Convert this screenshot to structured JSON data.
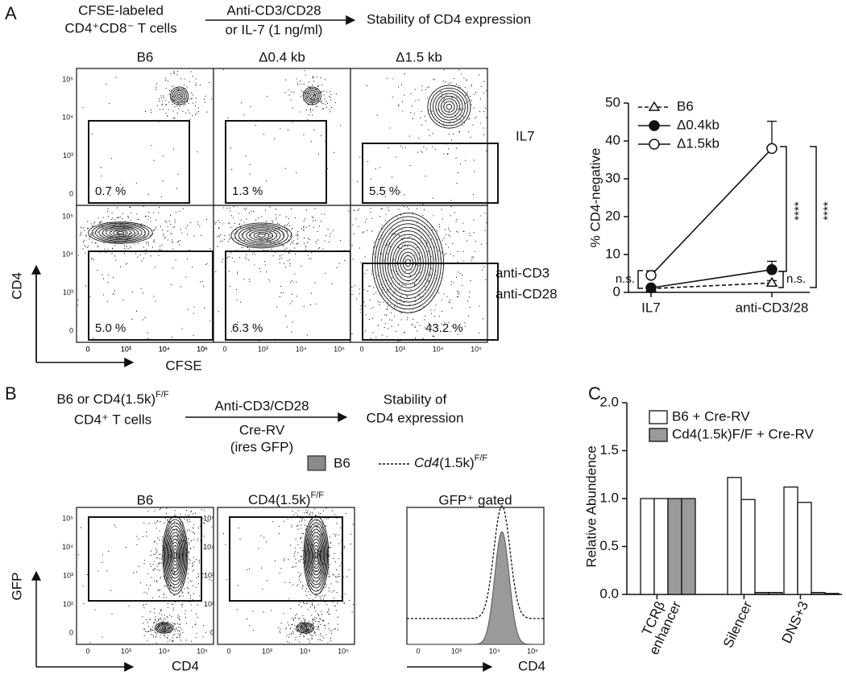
{
  "panel_a": {
    "label": "A",
    "schema": [
      "CFSE-labeled",
      "CD4⁺CD8⁻ T cells",
      "Anti-CD3/CD28",
      "or IL-7 (1 ng/ml)",
      "Stability of CD4 expression"
    ],
    "columns": [
      "B6",
      "Δ0.4 kb",
      "Δ1.5 kb"
    ],
    "rows": [
      "IL7",
      "anti-CD3",
      "anti-CD28"
    ],
    "percents": [
      "0.7 %",
      "1.3 %",
      "5.5 %",
      "5.0 %",
      "6.3 %",
      "43.2 %"
    ],
    "y_axis": "CD4",
    "x_axis": "CFSE"
  },
  "panel_b": {
    "label": "B",
    "schema": [
      "B6 or CD4(1.5k)",
      "F/F",
      "CD4⁺ T cells",
      "Anti-CD3/CD28",
      "Cre-RV",
      "(ires GFP)",
      "Stability of",
      "CD4 expression"
    ],
    "legend": [
      "B6",
      "Cd4",
      "(1.5k)",
      "F/F"
    ],
    "titles": [
      "B6",
      "CD4(1.5k)",
      "F/F",
      "GFP⁺ gated"
    ],
    "y_axis": "GFP",
    "x_axis": "CD4"
  },
  "panel_c": {
    "label": "C"
  },
  "flow_ticks": {
    "x": [
      "0",
      "10³",
      "10⁴",
      "10⁵"
    ],
    "y": [
      "0",
      "10³",
      "10⁴",
      "10⁵"
    ],
    "y_b": [
      "0",
      "10²",
      "10³",
      "10⁴",
      "10⁵"
    ]
  },
  "chart_data": [
    {
      "type": "line",
      "ylabel": "% CD4-negative",
      "categories": [
        "IL7",
        "anti-CD3/28"
      ],
      "ylim": [
        0,
        50
      ],
      "yticks": [
        0,
        10,
        20,
        30,
        40,
        50
      ],
      "series": [
        {
          "name": "B6",
          "color": "#111",
          "marker": "triangle",
          "dashed": true,
          "values": [
            1.0,
            2.5
          ],
          "errors": [
            0,
            0.6
          ]
        },
        {
          "name": "Δ0.4kb",
          "color": "#111",
          "marker": "filled-circle",
          "dashed": false,
          "values": [
            1.2,
            6.0
          ],
          "errors": [
            0.3,
            2.2
          ]
        },
        {
          "name": "Δ1.5kb",
          "color": "#111",
          "marker": "open-circle",
          "dashed": false,
          "values": [
            4.5,
            38.0
          ],
          "errors": [
            1.2,
            7.2
          ]
        }
      ],
      "annotations": [
        "n.s.",
        "n.s.",
        "****",
        "****"
      ]
    },
    {
      "type": "bar",
      "ylabel": "Relative Abundence",
      "categories": [
        [
          "TCRβ",
          "enhancer"
        ],
        [
          "Silencer"
        ],
        [
          "DNS+3"
        ]
      ],
      "ylim": [
        0,
        2
      ],
      "yticks": [
        {
          "value": 0,
          "label": "0.0"
        },
        {
          "value": 0.5,
          "label": "0.5"
        },
        {
          "value": 1,
          "label": "1.0"
        },
        {
          "value": 1.5,
          "label": "1.5"
        },
        {
          "value": 2,
          "label": "2.0"
        }
      ],
      "series": [
        {
          "name": "B6 + Cre-RV",
          "color": "#ffffff",
          "values": [
            [
              1.0,
              1.0
            ],
            [
              1.22,
              0.99
            ],
            [
              1.12,
              0.96
            ]
          ]
        },
        {
          "name": "Cd4(1.5k)F/F + Cre-RV",
          "color": "#9a9a9a",
          "values": [
            [
              1.0,
              1.0
            ],
            [
              0.02,
              0.02
            ],
            [
              0.02,
              0.01
            ]
          ]
        }
      ]
    }
  ]
}
